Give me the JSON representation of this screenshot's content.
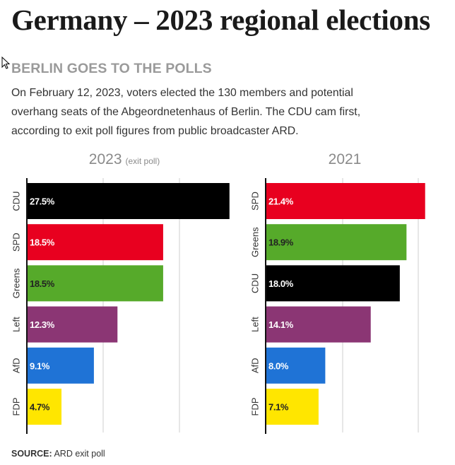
{
  "header": {
    "title": "Germany – 2023 regional elections",
    "subtitle": "BERLIN GOES TO THE POLLS",
    "intro_lines": [
      "On February 12, 2023, voters elected the 130 members and potential",
      "overhang seats of the Abgeordnetenhaus of Berlin. The CDU cam first,",
      "according to exit poll figures from public broadcaster ARD."
    ]
  },
  "footer": {
    "source_label": "SOURCE:",
    "source_text": "ARD exit poll"
  },
  "chart_data": [
    {
      "type": "bar",
      "orientation": "horizontal",
      "title": "2023",
      "title_note": "(exit poll)",
      "categories": [
        "CDU",
        "SPD",
        "Greens",
        "Left",
        "AfD",
        "FDP"
      ],
      "values": [
        27.5,
        18.5,
        18.5,
        12.3,
        9.1,
        4.7
      ],
      "labels": [
        "27.5%",
        "18.5%",
        "18.5%",
        "12.3%",
        "9.1%",
        "4.7%"
      ],
      "colors": [
        "#000000",
        "#e8001f",
        "#56aa2a",
        "#8b3674",
        "#1f73d6",
        "#ffe600"
      ],
      "label_colors": [
        "#ffffff",
        "#ffffff",
        "#222222",
        "#ffffff",
        "#ffffff",
        "#222222"
      ],
      "xlim": [
        0,
        28
      ],
      "grid": true
    },
    {
      "type": "bar",
      "orientation": "horizontal",
      "title": "2021",
      "categories": [
        "SPD",
        "Greens",
        "CDU",
        "Left",
        "AfD",
        "FDP"
      ],
      "values": [
        21.4,
        18.9,
        18.0,
        14.1,
        8.0,
        7.1
      ],
      "labels": [
        "21.4%",
        "18.9%",
        "18.0%",
        "14.1%",
        "8.0%",
        "7.1%"
      ],
      "colors": [
        "#e8001f",
        "#56aa2a",
        "#000000",
        "#8b3674",
        "#1f73d6",
        "#ffe600"
      ],
      "label_colors": [
        "#ffffff",
        "#222222",
        "#ffffff",
        "#ffffff",
        "#ffffff",
        "#222222"
      ],
      "xlim": [
        0,
        21.9
      ],
      "grid": true
    }
  ]
}
